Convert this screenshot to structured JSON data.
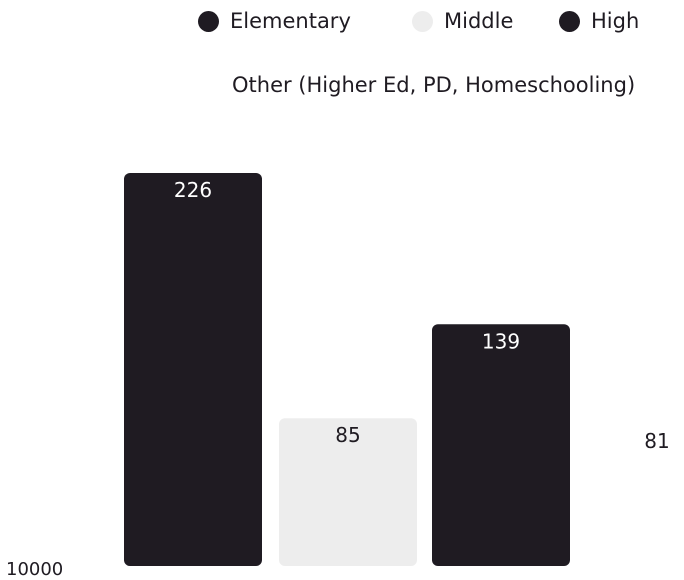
{
  "colors": {
    "elementary": "#1f1b22",
    "middle": "#ededed",
    "high": "#1f1b22",
    "other": "#ffffff",
    "text": "#1f1b22"
  },
  "legend": [
    {
      "label": "Elementary",
      "color": "#1f1b22"
    },
    {
      "label": "Middle",
      "color": "#ededed"
    },
    {
      "label": "High",
      "color": "#1f1b22"
    },
    {
      "label": "Other (Higher Ed, PD, Homeschooling)",
      "color": "#ffffff"
    }
  ],
  "chart_data": {
    "type": "bar",
    "categories": [
      "Elementary",
      "Middle",
      "High",
      "Other (Higher Ed, PD, Homeschooling)"
    ],
    "values": [
      226,
      85,
      139,
      81
    ],
    "data_labels": [
      "226",
      "85",
      "139",
      "81"
    ],
    "y_tick_label": "10000",
    "legend_position": "top",
    "grid": false
  }
}
